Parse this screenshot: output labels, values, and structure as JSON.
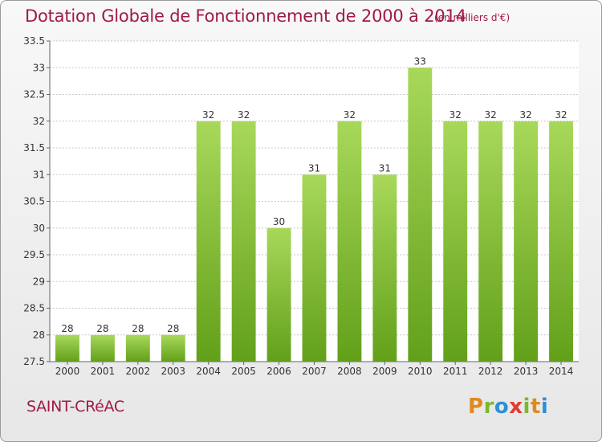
{
  "title": "Dotation Globale de Fonctionnement de 2000 à 2014",
  "unit_note": "(en milliers d'€)",
  "commune": "SAINT-CRéAC",
  "logo": {
    "text": "Proxiti"
  },
  "colors": {
    "title": "#a0194a",
    "bar_light": "#a8d85a",
    "bar_dark": "#62a01a",
    "grid": "#c8c8c8"
  },
  "chart_data": {
    "type": "bar",
    "title": "Dotation Globale de Fonctionnement de 2000 à 2014",
    "subtitle": "(en milliers d'€)",
    "xlabel": "",
    "ylabel": "",
    "categories": [
      "2000",
      "2001",
      "2002",
      "2003",
      "2004",
      "2005",
      "2006",
      "2007",
      "2008",
      "2009",
      "2010",
      "2011",
      "2012",
      "2013",
      "2014"
    ],
    "values": [
      28,
      28,
      28,
      28,
      32,
      32,
      30,
      31,
      32,
      31,
      33,
      32,
      32,
      32,
      32
    ],
    "ylim": [
      27.5,
      33.5
    ],
    "yticks": [
      27.5,
      28,
      28.5,
      29,
      29.5,
      30,
      30.5,
      31,
      31.5,
      32,
      32.5,
      33,
      33.5
    ],
    "grid": true,
    "data_labels": true
  }
}
